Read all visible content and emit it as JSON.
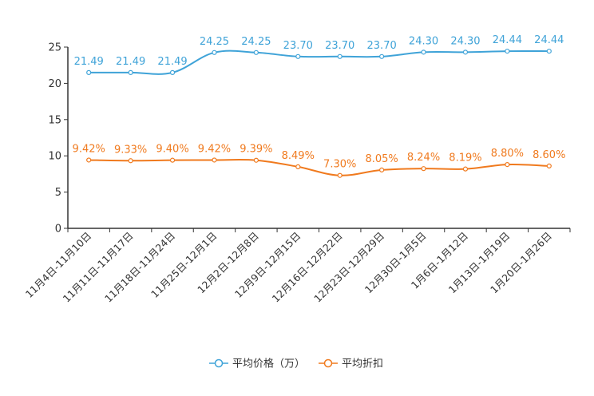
{
  "chart_data": {
    "type": "line",
    "title": "",
    "xlabel": "",
    "ylabel": "",
    "ylim": [
      0,
      25
    ],
    "yticks": [
      0,
      5,
      10,
      15,
      20,
      25
    ],
    "grid": false,
    "legend_position": "bottom-center",
    "categories": [
      "11月4日-11月10日",
      "11月11日-11月17日",
      "11月18日-11月24日",
      "11月25日-12月1日",
      "12月2日-12月8日",
      "12月9日-12月15日",
      "12月16日-12月22日",
      "12月23日-12月29日",
      "12月30日-1月5日",
      "1月6日-1月12日",
      "1月13日-1月19日",
      "1月20日-1月26日"
    ],
    "series": [
      {
        "name": "平均价格（万）",
        "color": "#3fa3d8",
        "values": [
          21.49,
          21.49,
          21.49,
          24.25,
          24.25,
          23.7,
          23.7,
          23.7,
          24.3,
          24.3,
          24.44,
          24.44
        ],
        "labels": [
          "21.49",
          "21.49",
          "21.49",
          "24.25",
          "24.25",
          "23.70",
          "23.70",
          "23.70",
          "24.30",
          "24.30",
          "24.44",
          "24.44"
        ]
      },
      {
        "name": "平均折扣",
        "color": "#f07a1e",
        "values": [
          9.42,
          9.33,
          9.4,
          9.42,
          9.39,
          8.49,
          7.3,
          8.05,
          8.24,
          8.19,
          8.8,
          8.6
        ],
        "labels": [
          "9.42%",
          "9.33%",
          "9.40%",
          "9.42%",
          "9.39%",
          "8.49%",
          "7.30%",
          "8.05%",
          "8.24%",
          "8.19%",
          "8.80%",
          "8.60%"
        ]
      }
    ]
  }
}
